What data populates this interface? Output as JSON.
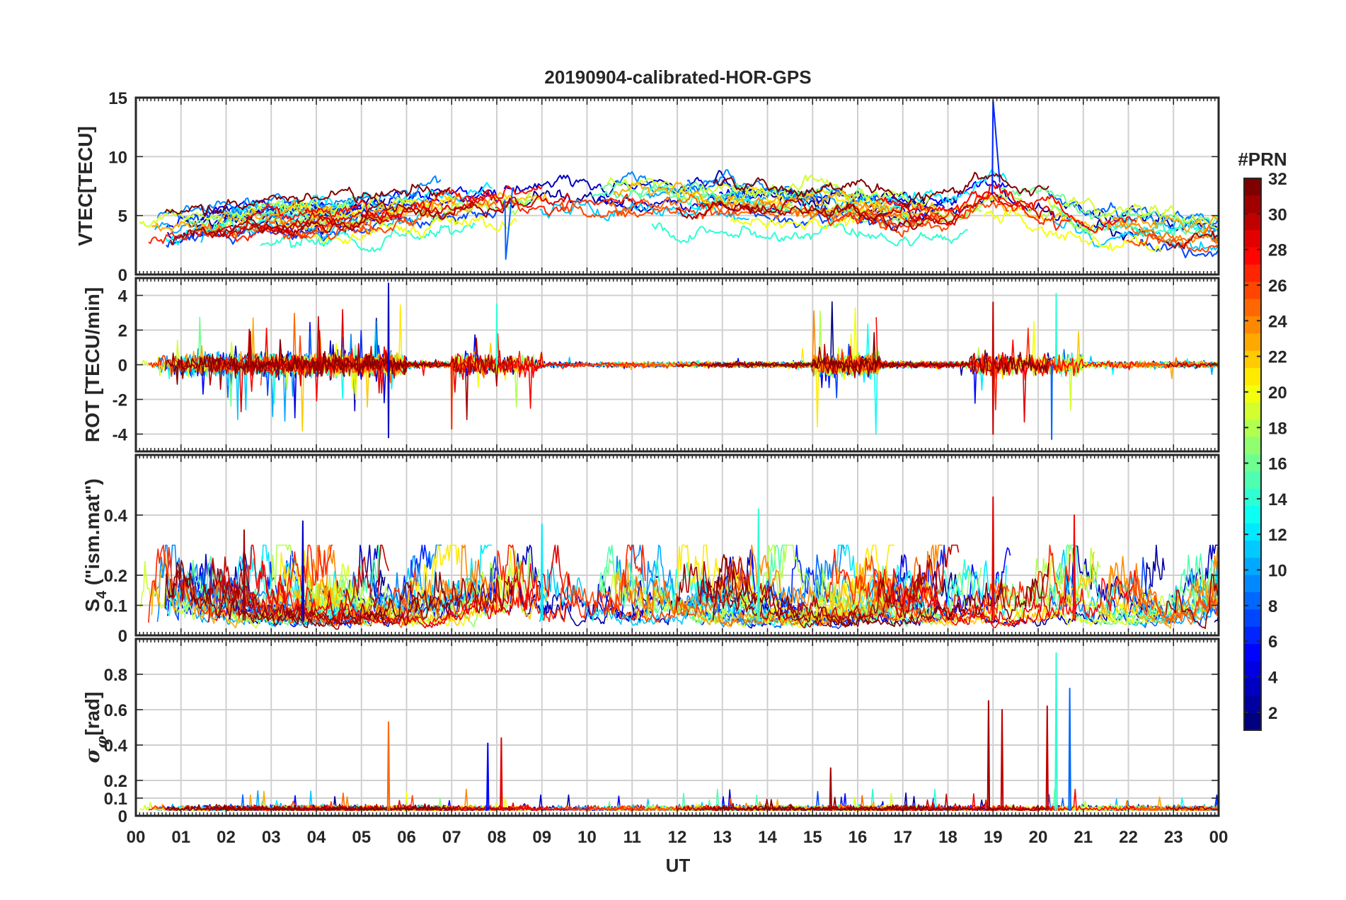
{
  "chart_data": {
    "type": "line",
    "title": "20190904-calibrated-HOR-GPS",
    "xlabel": "UT",
    "x_ticks": [
      "00",
      "01",
      "02",
      "03",
      "04",
      "05",
      "06",
      "07",
      "08",
      "09",
      "10",
      "11",
      "12",
      "13",
      "14",
      "15",
      "16",
      "17",
      "18",
      "19",
      "20",
      "21",
      "22",
      "23",
      "00"
    ],
    "x_range": [
      0,
      24
    ],
    "grid": true,
    "series_note": "One trace per GPS satellite PRN 1-32, colored by PRN (jet colormap)",
    "panels": [
      {
        "name": "vtec",
        "ylabel": "VTEC[TECU]",
        "ylim": [
          0,
          15
        ],
        "yticks": [
          "0",
          "5",
          "10",
          "15"
        ],
        "ytick_values": [
          0,
          5,
          10,
          15
        ],
        "profile": {
          "hours": [
            0,
            1,
            2,
            3,
            4,
            5,
            6,
            7,
            8,
            9,
            10,
            11,
            12,
            13,
            14,
            15,
            16,
            17,
            18,
            19,
            20,
            21,
            22,
            23,
            24
          ],
          "mean_vtec": [
            3.2,
            3.6,
            4.1,
            4.6,
            4.5,
            5.0,
            5.6,
            6.0,
            6.3,
            6.6,
            6.5,
            6.4,
            6.3,
            6.1,
            5.8,
            5.7,
            5.6,
            5.2,
            5.0,
            6.8,
            5.6,
            4.3,
            4.0,
            3.5,
            3.2
          ]
        },
        "events": [
          {
            "label": "PRN spike near 19 UT",
            "hour": 19.0,
            "value": 14.8
          },
          {
            "label": "dip near 08 UT",
            "hour": 8.2,
            "value": 1.3
          }
        ]
      },
      {
        "name": "rot",
        "ylabel": "ROT [TECU/min]",
        "ylim": [
          -5,
          5
        ],
        "yticks": [
          "-4",
          "-2",
          "0",
          "2",
          "4"
        ],
        "ytick_values": [
          -4,
          -2,
          0,
          2,
          4
        ],
        "activity_windows": [
          [
            0.5,
            4.0
          ],
          [
            4.0,
            6.0
          ],
          [
            7.0,
            9.0
          ],
          [
            15.0,
            16.5
          ],
          [
            18.5,
            21.0
          ]
        ],
        "peaks": [
          {
            "hour": 5.6,
            "value": 4.7
          },
          {
            "hour": 5.6,
            "value": -4.2
          },
          {
            "hour": 7.0,
            "value": -3.7
          },
          {
            "hour": 8.0,
            "value": 3.5
          },
          {
            "hour": 19.0,
            "value": 3.6
          },
          {
            "hour": 19.0,
            "value": -4.0
          },
          {
            "hour": 20.4,
            "value": 4.1
          },
          {
            "hour": 20.3,
            "value": -4.3
          }
        ]
      },
      {
        "name": "s4",
        "ylabel": "S4 (\"ism.mat\")",
        "ylabel_parts": [
          "S",
          "4",
          " (\"ism.mat\")"
        ],
        "ylim": [
          0,
          0.6
        ],
        "yticks": [
          "0",
          "0.1",
          "0.2",
          "0.4"
        ],
        "ytick_values": [
          0,
          0.1,
          0.2,
          0.4
        ],
        "peaks": [
          {
            "hour": 2.4,
            "value": 0.35
          },
          {
            "hour": 3.7,
            "value": 0.38
          },
          {
            "hour": 9.0,
            "value": 0.37
          },
          {
            "hour": 13.8,
            "value": 0.42
          },
          {
            "hour": 19.0,
            "value": 0.46
          },
          {
            "hour": 20.8,
            "value": 0.4
          }
        ]
      },
      {
        "name": "sigma_phi",
        "ylabel": "σφ[rad]",
        "ylabel_parts": [
          "σ",
          "φ",
          "[rad]"
        ],
        "ylim": [
          0,
          1.0
        ],
        "yticks": [
          "0",
          "0.1",
          "0.2",
          "0.4",
          "0.6",
          "0.8"
        ],
        "ytick_values": [
          0,
          0.1,
          0.2,
          0.4,
          0.6,
          0.8
        ],
        "peaks": [
          {
            "hour": 5.6,
            "value": 0.53
          },
          {
            "hour": 7.8,
            "value": 0.41
          },
          {
            "hour": 8.1,
            "value": 0.44
          },
          {
            "hour": 15.4,
            "value": 0.27
          },
          {
            "hour": 18.9,
            "value": 0.65
          },
          {
            "hour": 19.2,
            "value": 0.6
          },
          {
            "hour": 20.2,
            "value": 0.62
          },
          {
            "hour": 20.4,
            "value": 0.92
          },
          {
            "hour": 20.7,
            "value": 0.72
          }
        ]
      }
    ],
    "colorbar": {
      "label": "#PRN",
      "range": [
        1,
        32
      ],
      "ticks": [
        "2",
        "4",
        "6",
        "8",
        "10",
        "12",
        "14",
        "16",
        "18",
        "20",
        "22",
        "24",
        "26",
        "28",
        "30",
        "32"
      ],
      "tick_values": [
        2,
        4,
        6,
        8,
        10,
        12,
        14,
        16,
        18,
        20,
        22,
        24,
        26,
        28,
        30,
        32
      ],
      "colormap": "jet"
    }
  }
}
